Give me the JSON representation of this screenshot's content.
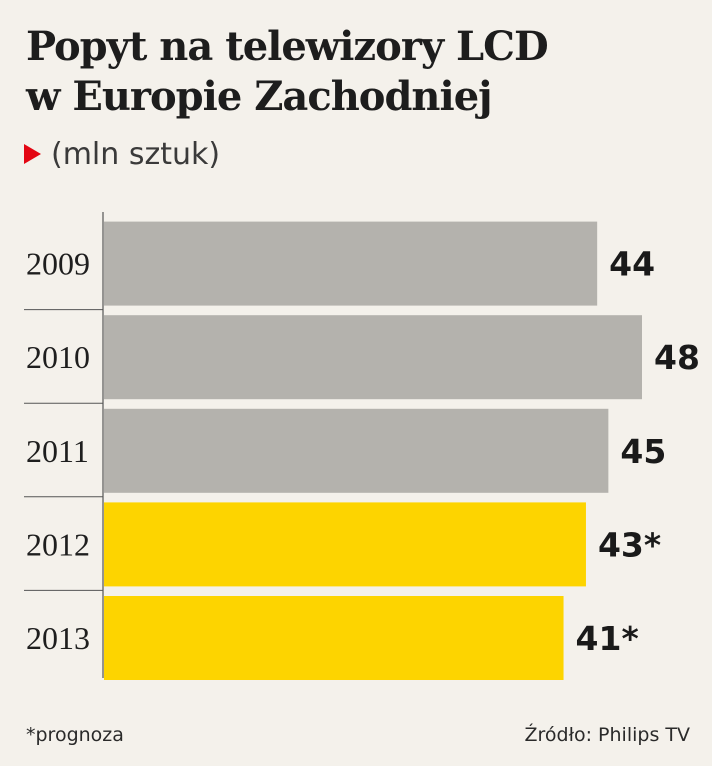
{
  "chart_data": {
    "type": "bar",
    "orientation": "horizontal",
    "title": "Popyt na telewizory LCD w Europie Zachodniej",
    "title_lines": [
      "Popyt na telewizory LCD",
      "w Europie Zachodniej"
    ],
    "subtitle": "(mln sztuk)",
    "categories": [
      "2009",
      "2010",
      "2011",
      "2012",
      "2013"
    ],
    "values": [
      44,
      48,
      45,
      43,
      41
    ],
    "value_labels": [
      "44",
      "48",
      "45",
      "43*",
      "41*"
    ],
    "is_forecast": [
      false,
      false,
      false,
      true,
      true
    ],
    "xlim": [
      0,
      48
    ],
    "grid": false,
    "legend": "none",
    "colors": {
      "actual": "#b4b2ad",
      "forecast": "#fdd400",
      "accent": "#e30613",
      "background": "#f4f1eb",
      "axis": "#555555"
    }
  },
  "footnote": "*prognoza",
  "source": "Źródło: Philips TV"
}
